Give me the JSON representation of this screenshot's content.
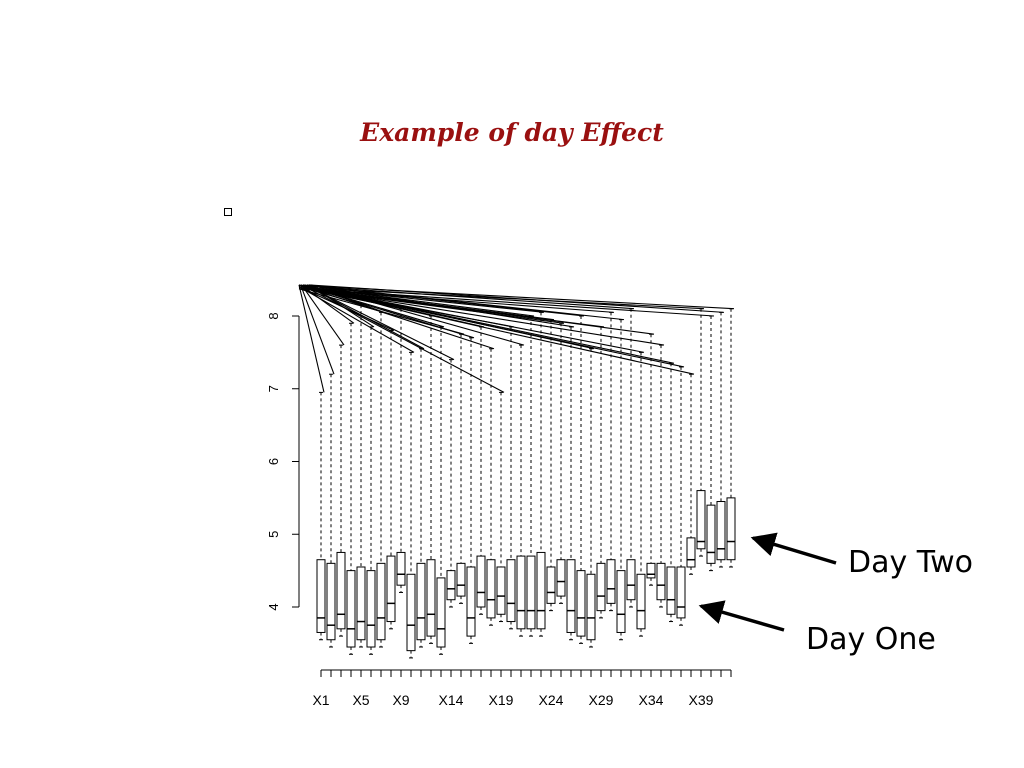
{
  "slide": {
    "title": "Example of day Effect",
    "bullet_icon": "hollow-square-bullet-icon"
  },
  "annotations": {
    "day_two": "Day Two",
    "day_one": "Day One"
  },
  "chart_data": {
    "type": "boxplot",
    "title": "",
    "xlabel": "",
    "ylabel": "",
    "ylim": [
      3.4,
      8.4
    ],
    "yticks": [
      4,
      5,
      6,
      7,
      8
    ],
    "x_labels_shown": [
      "X1",
      "X5",
      "X9",
      "X14",
      "X19",
      "X24",
      "X29",
      "X34",
      "X39"
    ],
    "n_boxes": 42,
    "series": [
      {
        "name": "X1",
        "q1": 3.65,
        "median": 3.85,
        "q3": 4.65,
        "min": 3.55,
        "max": 6.95
      },
      {
        "name": "X2",
        "q1": 3.55,
        "median": 3.75,
        "q3": 4.6,
        "min": 3.45,
        "max": 7.2
      },
      {
        "name": "X3",
        "q1": 3.7,
        "median": 3.9,
        "q3": 4.75,
        "min": 3.6,
        "max": 7.6
      },
      {
        "name": "X4",
        "q1": 3.45,
        "median": 3.7,
        "q3": 4.5,
        "min": 3.35,
        "max": 7.9
      },
      {
        "name": "X5",
        "q1": 3.55,
        "median": 3.8,
        "q3": 4.55,
        "min": 3.45,
        "max": 8.15
      },
      {
        "name": "X6",
        "q1": 3.45,
        "median": 3.75,
        "q3": 4.5,
        "min": 3.35,
        "max": 7.85
      },
      {
        "name": "X7",
        "q1": 3.55,
        "median": 3.85,
        "q3": 4.6,
        "min": 3.45,
        "max": 8.05
      },
      {
        "name": "X8",
        "q1": 3.8,
        "median": 4.05,
        "q3": 4.7,
        "min": 3.7,
        "max": 7.8
      },
      {
        "name": "X9",
        "q1": 4.3,
        "median": 4.45,
        "q3": 4.75,
        "min": 4.2,
        "max": 8.1
      },
      {
        "name": "X10",
        "q1": 3.4,
        "median": 3.75,
        "q3": 4.45,
        "min": 3.3,
        "max": 7.5
      },
      {
        "name": "X11",
        "q1": 3.55,
        "median": 3.85,
        "q3": 4.6,
        "min": 3.45,
        "max": 7.55
      },
      {
        "name": "X12",
        "q1": 3.6,
        "median": 3.9,
        "q3": 4.65,
        "min": 3.5,
        "max": 8.0
      },
      {
        "name": "X13",
        "q1": 3.45,
        "median": 3.7,
        "q3": 4.4,
        "min": 3.35,
        "max": 7.85
      },
      {
        "name": "X14",
        "q1": 4.1,
        "median": 4.25,
        "q3": 4.5,
        "min": 4.0,
        "max": 7.4
      },
      {
        "name": "X15",
        "q1": 4.15,
        "median": 4.3,
        "q3": 4.6,
        "min": 4.05,
        "max": 7.75
      },
      {
        "name": "X16",
        "q1": 3.6,
        "median": 3.85,
        "q3": 4.55,
        "min": 3.5,
        "max": 7.7
      },
      {
        "name": "X17",
        "q1": 4.0,
        "median": 4.2,
        "q3": 4.7,
        "min": 3.9,
        "max": 7.85
      },
      {
        "name": "X18",
        "q1": 3.85,
        "median": 4.1,
        "q3": 4.65,
        "min": 3.75,
        "max": 7.55
      },
      {
        "name": "X19",
        "q1": 3.9,
        "median": 4.15,
        "q3": 4.55,
        "min": 3.8,
        "max": 6.95
      },
      {
        "name": "X20",
        "q1": 3.8,
        "median": 4.05,
        "q3": 4.65,
        "min": 3.7,
        "max": 7.85
      },
      {
        "name": "X21",
        "q1": 3.7,
        "median": 3.95,
        "q3": 4.7,
        "min": 3.6,
        "max": 7.6
      },
      {
        "name": "X22",
        "q1": 3.7,
        "median": 3.95,
        "q3": 4.7,
        "min": 3.6,
        "max": 8.0
      },
      {
        "name": "X23",
        "q1": 3.7,
        "median": 3.95,
        "q3": 4.75,
        "min": 3.6,
        "max": 8.05
      },
      {
        "name": "X24",
        "q1": 4.05,
        "median": 4.2,
        "q3": 4.55,
        "min": 3.95,
        "max": 7.95
      },
      {
        "name": "X25",
        "q1": 4.15,
        "median": 4.35,
        "q3": 4.65,
        "min": 4.05,
        "max": 7.9
      },
      {
        "name": "X26",
        "q1": 3.65,
        "median": 3.95,
        "q3": 4.65,
        "min": 3.55,
        "max": 7.85
      },
      {
        "name": "X27",
        "q1": 3.6,
        "median": 3.85,
        "q3": 4.5,
        "min": 3.5,
        "max": 8.0
      },
      {
        "name": "X28",
        "q1": 3.55,
        "median": 3.85,
        "q3": 4.45,
        "min": 3.45,
        "max": 7.55
      },
      {
        "name": "X29",
        "q1": 3.95,
        "median": 4.15,
        "q3": 4.6,
        "min": 3.85,
        "max": 7.85
      },
      {
        "name": "X30",
        "q1": 4.05,
        "median": 4.25,
        "q3": 4.65,
        "min": 3.95,
        "max": 8.05
      },
      {
        "name": "X31",
        "q1": 3.65,
        "median": 3.9,
        "q3": 4.5,
        "min": 3.55,
        "max": 7.95
      },
      {
        "name": "X32",
        "q1": 4.1,
        "median": 4.3,
        "q3": 4.65,
        "min": 4.0,
        "max": 8.1
      },
      {
        "name": "X33",
        "q1": 3.7,
        "median": 3.95,
        "q3": 4.45,
        "min": 3.6,
        "max": 7.5
      },
      {
        "name": "X34",
        "q1": 4.4,
        "median": 4.45,
        "q3": 4.6,
        "min": 4.3,
        "max": 7.75
      },
      {
        "name": "X35",
        "q1": 4.1,
        "median": 4.3,
        "q3": 4.6,
        "min": 4.0,
        "max": 7.6
      },
      {
        "name": "X36",
        "q1": 3.9,
        "median": 4.1,
        "q3": 4.55,
        "min": 3.8,
        "max": 7.35
      },
      {
        "name": "X37",
        "q1": 3.85,
        "median": 4.0,
        "q3": 4.55,
        "min": 3.75,
        "max": 7.3
      },
      {
        "name": "X38",
        "q1": 4.55,
        "median": 4.65,
        "q3": 4.95,
        "min": 4.45,
        "max": 7.2
      },
      {
        "name": "X39",
        "q1": 4.8,
        "median": 4.9,
        "q3": 5.6,
        "min": 4.7,
        "max": 8.1
      },
      {
        "name": "X40",
        "q1": 4.6,
        "median": 4.75,
        "q3": 5.4,
        "min": 4.5,
        "max": 8.0
      },
      {
        "name": "X41",
        "q1": 4.65,
        "median": 4.8,
        "q3": 5.45,
        "min": 4.55,
        "max": 8.05
      },
      {
        "name": "X42",
        "q1": 4.65,
        "median": 4.9,
        "q3": 5.5,
        "min": 4.55,
        "max": 8.1
      }
    ]
  }
}
